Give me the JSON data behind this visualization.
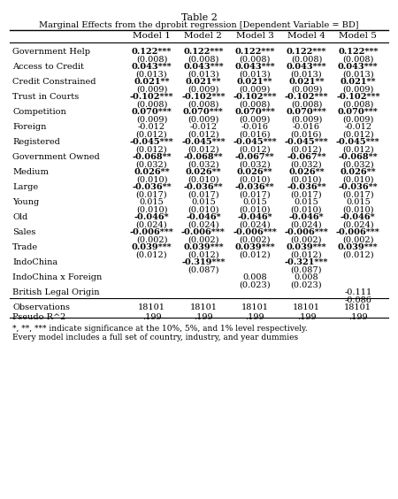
{
  "title1": "Table 2",
  "title2": "Marginal Effects from the dprobit regression [Dependent Variable = BD]",
  "col_headers": [
    "",
    "Model 1",
    "Model 2",
    "Model 3",
    "Model 4",
    "Model 5"
  ],
  "rows": [
    {
      "label": "Government Help",
      "bold": true,
      "vals": [
        "0.122***",
        "0.122***",
        "0.122***",
        "0.122***",
        "0.122***"
      ],
      "ses": [
        "(0.008)",
        "(0.008)",
        "(0.008)",
        "(0.008)",
        "(0.008)"
      ]
    },
    {
      "label": "Access to Credit",
      "bold": true,
      "vals": [
        "0.043***",
        "0.043***",
        "0.043***",
        "0.043***",
        "0.043***"
      ],
      "ses": [
        "(0.013)",
        "(0.013)",
        "(0.013)",
        "(0.013)",
        "(0.013)"
      ]
    },
    {
      "label": "Credit Constrained",
      "bold": true,
      "vals": [
        "0.021**",
        "0.021**",
        "0.021**",
        "0.021**",
        "0.021**"
      ],
      "ses": [
        "(0.009)",
        "(0.009)",
        "(0.009)",
        "(0.009)",
        "(0.009)"
      ]
    },
    {
      "label": "Trust in Courts",
      "bold": true,
      "vals": [
        "-0.102***",
        "-0.102***",
        "-0.102***",
        "-0.102***",
        "-0.102***"
      ],
      "ses": [
        "(0.008)",
        "(0.008)",
        "(0.008)",
        "(0.008)",
        "(0.008)"
      ]
    },
    {
      "label": "Competition",
      "bold": true,
      "vals": [
        "0.070***",
        "0.070***",
        "0.070***",
        "0.070***",
        "0.070***"
      ],
      "ses": [
        "(0.009)",
        "(0.009)",
        "(0.009)",
        "(0.009)",
        "(0.009)"
      ]
    },
    {
      "label": "Foreign",
      "bold": false,
      "vals": [
        "-0.012",
        "-0.012",
        "-0.016",
        "-0.016",
        "-0.012"
      ],
      "ses": [
        "(0.012)",
        "(0.012)",
        "(0.016)",
        "(0.016)",
        "(0.012)"
      ]
    },
    {
      "label": "Registered",
      "bold": true,
      "vals": [
        "-0.045***",
        "-0.045***",
        "-0.045***",
        "-0.045***",
        "-0.045***"
      ],
      "ses": [
        "(0.012)",
        "(0.012)",
        "(0.012)",
        "(0.012)",
        "(0.012)"
      ]
    },
    {
      "label": "Government Owned",
      "bold": true,
      "vals": [
        "-0.068**",
        "-0.068**",
        "-0.067**",
        "-0.067**",
        "-0.068**"
      ],
      "ses": [
        "(0.032)",
        "(0.032)",
        "(0.032)",
        "(0.032)",
        "(0.032)"
      ]
    },
    {
      "label": "Medium",
      "bold": true,
      "vals": [
        "0.026**",
        "0.026**",
        "0.026**",
        "0.026**",
        "0.026**"
      ],
      "ses": [
        "(0.010)",
        "(0.010)",
        "(0.010)",
        "(0.010)",
        "(0.010)"
      ]
    },
    {
      "label": "Large",
      "bold": true,
      "vals": [
        "-0.036**",
        "-0.036**",
        "-0.036**",
        "-0.036**",
        "-0.036**"
      ],
      "ses": [
        "(0.017)",
        "(0.017)",
        "(0.017)",
        "(0.017)",
        "(0.017)"
      ]
    },
    {
      "label": "Young",
      "bold": false,
      "vals": [
        "0.015",
        "0.015",
        "0.015",
        "0.015",
        "0.015"
      ],
      "ses": [
        "(0.010)",
        "(0.010)",
        "(0.010)",
        "(0.010)",
        "(0.010)"
      ]
    },
    {
      "label": "Old",
      "bold": true,
      "vals": [
        "-0.046*",
        "-0.046*",
        "-0.046*",
        "-0.046*",
        "-0.046*"
      ],
      "ses": [
        "(0.024)",
        "(0.024)",
        "(0.024)",
        "(0.024)",
        "(0.024)"
      ]
    },
    {
      "label": "Sales",
      "bold": true,
      "vals": [
        "-0.006***",
        "-0.006***",
        "-0.006***",
        "-0.006***",
        "-0.006***"
      ],
      "ses": [
        "(0.002)",
        "(0.002)",
        "(0.002)",
        "(0.002)",
        "(0.002)"
      ]
    },
    {
      "label": "Trade",
      "bold": true,
      "vals": [
        "0.039***",
        "0.039***",
        "0.039***",
        "0.039***",
        "0.039***"
      ],
      "ses": [
        "(0.012)",
        "(0.012)",
        "(0.012)",
        "(0.012)",
        "(0.012)"
      ]
    },
    {
      "label": "IndoChina",
      "bold": true,
      "vals": [
        "",
        "-0.319***",
        "",
        "-0.321***",
        ""
      ],
      "ses": [
        "",
        "(0.087)",
        "",
        "(0.087)",
        ""
      ]
    },
    {
      "label": "IndoChina x Foreign",
      "bold": false,
      "vals": [
        "",
        "",
        "0.008",
        "0.008",
        ""
      ],
      "ses": [
        "",
        "",
        "(0.023)",
        "(0.023)",
        ""
      ]
    },
    {
      "label": "British Legal Origin",
      "bold": false,
      "vals": [
        "",
        "",
        "",
        "",
        "-0.111"
      ],
      "ses": [
        "",
        "",
        "",
        "",
        "-0.086"
      ]
    }
  ],
  "bottom_rows": [
    {
      "label": "Observations",
      "vals": [
        "18101",
        "18101",
        "18101",
        "18101",
        "18101"
      ]
    },
    {
      "label": "Pseudo R^2",
      "vals": [
        ".199",
        ".199",
        ".199",
        ".199",
        ".199"
      ]
    }
  ],
  "footnotes": [
    "*, **, *** indicate significance at the 10%, 5%, and 1% level respectively.",
    "Every model includes a full set of country, industry, and year dummies"
  ]
}
